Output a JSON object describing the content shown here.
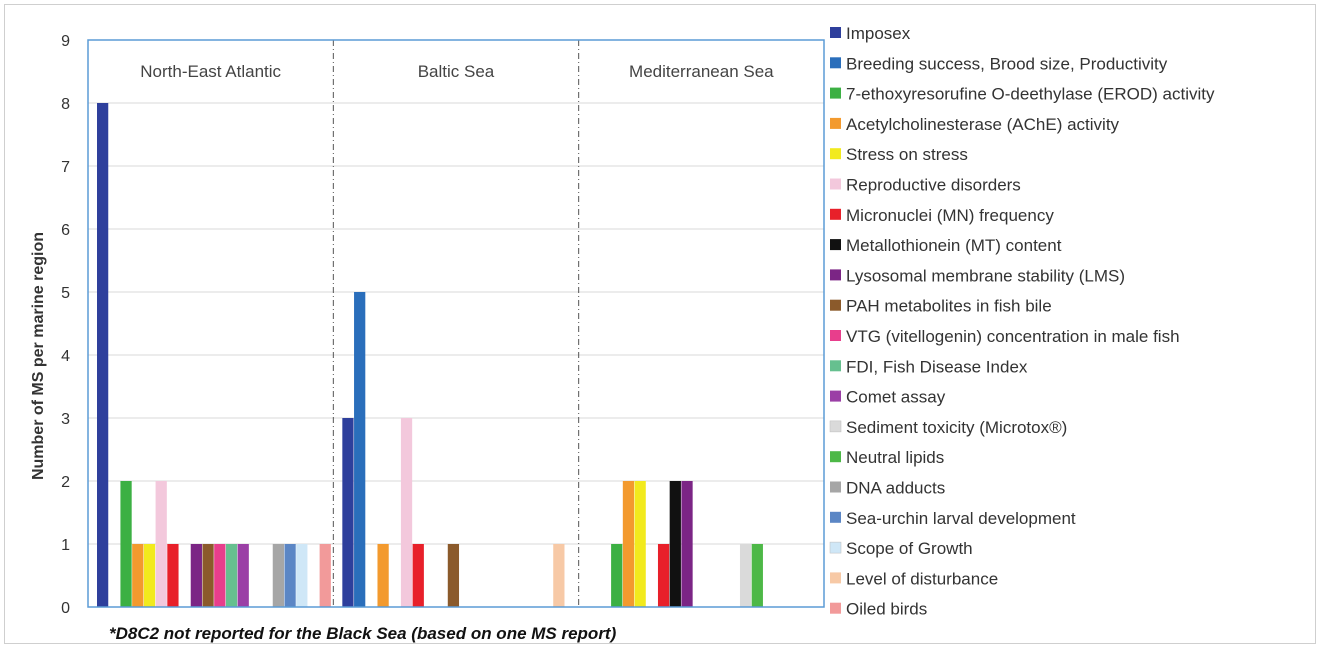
{
  "chart_data": {
    "type": "bar",
    "ylabel": "Number of MS per marine region",
    "ylim": [
      0,
      9
    ],
    "yticks": [
      0,
      1,
      2,
      3,
      4,
      5,
      6,
      7,
      8,
      9
    ],
    "grid": true,
    "legend_position": "right",
    "footnote": "*D8C2 not reported for the Black Sea (based on one MS report)",
    "categories": [
      "North-East Atlantic",
      "Baltic Sea",
      "Mediterranean Sea"
    ],
    "series": [
      {
        "name": "Imposex",
        "color": "#2E3F9C",
        "values": [
          8,
          3,
          0
        ]
      },
      {
        "name": "Breeding success, Brood size, Productivity",
        "color": "#2A6EBB",
        "values": [
          0,
          5,
          0
        ]
      },
      {
        "name": "7-ethoxyresorufine O-deethylase (EROD) activity",
        "color": "#3CB043",
        "values": [
          2,
          0,
          1
        ]
      },
      {
        "name": "Acetylcholinesterase (AChE) activity",
        "color": "#F39A2E",
        "values": [
          1,
          1,
          2
        ]
      },
      {
        "name": "Stress on stress",
        "color": "#F2EA1D",
        "values": [
          1,
          0,
          2
        ]
      },
      {
        "name": "Reproductive disorders",
        "color": "#F3C8DC",
        "values": [
          2,
          3,
          0
        ]
      },
      {
        "name": "Micronuclei (MN) frequency",
        "color": "#E8202A",
        "values": [
          1,
          1,
          1
        ]
      },
      {
        "name": "Metallothionein (MT) content",
        "color": "#111111",
        "values": [
          0,
          0,
          2
        ]
      },
      {
        "name": "Lysosomal membrane stability (LMS)",
        "color": "#7B2585",
        "values": [
          1,
          0,
          2
        ]
      },
      {
        "name": "PAH metabolites  in fish bile",
        "color": "#8B5A2B",
        "values": [
          1,
          1,
          0
        ]
      },
      {
        "name": "VTG (vitellogenin) concentration in male fish",
        "color": "#E83E8C",
        "values": [
          1,
          0,
          0
        ]
      },
      {
        "name": "FDI, Fish Disease Index",
        "color": "#66C08F",
        "values": [
          1,
          0,
          0
        ]
      },
      {
        "name": "Comet assay",
        "color": "#9B3FA6",
        "values": [
          1,
          0,
          0
        ]
      },
      {
        "name": "Sediment toxicity (Microtox®)",
        "color": "#DADADA",
        "values": [
          0,
          0,
          1
        ]
      },
      {
        "name": "Neutral lipids",
        "color": "#4DB847",
        "values": [
          0,
          0,
          1
        ]
      },
      {
        "name": "DNA adducts",
        "color": "#A6A6A6",
        "values": [
          1,
          0,
          0
        ]
      },
      {
        "name": "Sea-urchin larval development",
        "color": "#5B86C5",
        "values": [
          1,
          0,
          0
        ]
      },
      {
        "name": "Scope of Growth",
        "color": "#CFE7F7",
        "values": [
          1,
          0,
          0
        ]
      },
      {
        "name": "Level of disturbance",
        "color": "#F7C9A6",
        "values": [
          0,
          1,
          0
        ]
      },
      {
        "name": "Oiled birds",
        "color": "#F29A9A",
        "values": [
          1,
          0,
          0
        ]
      }
    ]
  }
}
